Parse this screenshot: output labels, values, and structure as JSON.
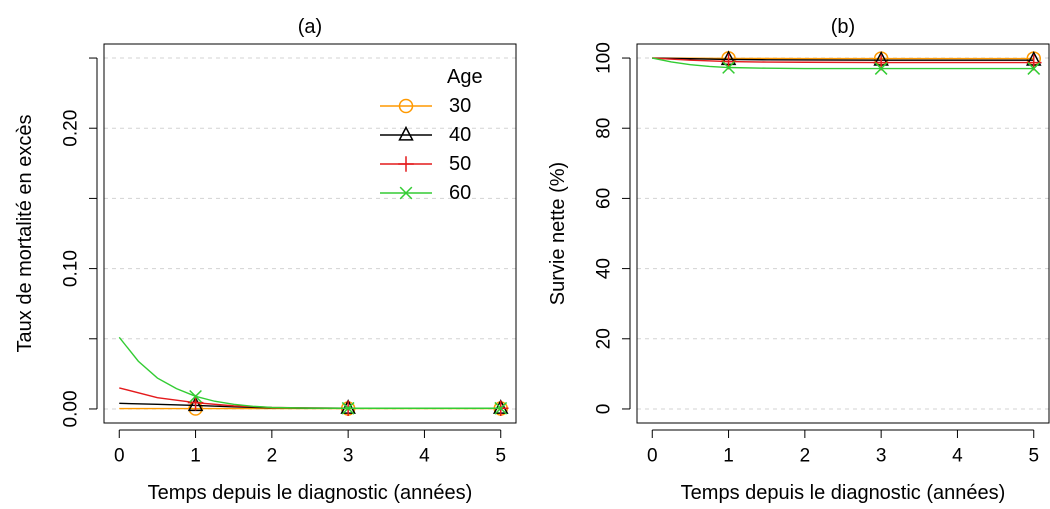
{
  "chart_data": [
    {
      "type": "line",
      "title": "(a)",
      "xlabel": "Temps depuis le diagnostic (années)",
      "ylabel": "Taux de mortalité en excès",
      "xlim": [
        0,
        5
      ],
      "ylim": [
        0,
        0.25
      ],
      "xticks": [
        0,
        1,
        2,
        3,
        4,
        5
      ],
      "xtick_labels": [
        "0",
        "1",
        "2",
        "3",
        "4",
        "5"
      ],
      "yticks": [
        0,
        0.05,
        0.1,
        0.15,
        0.2,
        0.25
      ],
      "ytick_labels": [
        "0.00",
        "",
        "0.10",
        "",
        "0.20",
        ""
      ],
      "grid": "horizontal dashed",
      "legend": {
        "title": "Age",
        "position": "top-right",
        "entries": [
          "30",
          "40",
          "50",
          "60"
        ]
      },
      "series": [
        {
          "name": "30",
          "color": "#FF9900",
          "marker": "circle",
          "x": [
            0,
            0.5,
            1,
            1.5,
            2,
            2.5,
            3,
            3.5,
            4,
            4.5,
            5
          ],
          "y": [
            0.0003,
            0.0003,
            0.0003,
            0.0003,
            0.0003,
            0.0003,
            0.0003,
            0.0003,
            0.0003,
            0.0003,
            0.0003
          ],
          "marker_x": [
            1,
            3,
            5
          ]
        },
        {
          "name": "40",
          "color": "#000000",
          "marker": "triangle",
          "x": [
            0,
            0.5,
            1,
            1.5,
            2,
            2.5,
            3,
            3.5,
            4,
            4.5,
            5
          ],
          "y": [
            0.004,
            0.0033,
            0.0025,
            0.0015,
            0.0008,
            0.0006,
            0.0005,
            0.0005,
            0.0005,
            0.0005,
            0.0005
          ],
          "marker_x": [
            1,
            3,
            5
          ]
        },
        {
          "name": "50",
          "color": "#E41A1C",
          "marker": "plus",
          "x": [
            0,
            0.5,
            1,
            1.5,
            2,
            2.5,
            3,
            3.5,
            4,
            4.5,
            5
          ],
          "y": [
            0.015,
            0.008,
            0.0045,
            0.0022,
            0.0011,
            0.0007,
            0.0005,
            0.0005,
            0.0005,
            0.0005,
            0.0005
          ],
          "marker_x": [
            1,
            3,
            5
          ]
        },
        {
          "name": "60",
          "color": "#33CC33",
          "marker": "x",
          "x": [
            0,
            0.25,
            0.5,
            0.75,
            1,
            1.25,
            1.5,
            1.75,
            2,
            2.5,
            3,
            3.5,
            4,
            4.5,
            5
          ],
          "y": [
            0.051,
            0.034,
            0.022,
            0.0145,
            0.009,
            0.0055,
            0.0033,
            0.0019,
            0.0011,
            0.0006,
            0.0005,
            0.0005,
            0.0005,
            0.0005,
            0.0005
          ],
          "marker_x": [
            1,
            3,
            5
          ]
        }
      ]
    },
    {
      "type": "line",
      "title": "(b)",
      "xlabel": "Temps depuis le diagnostic (années)",
      "ylabel": "Survie nette (%)",
      "xlim": [
        0,
        5
      ],
      "ylim": [
        0,
        100
      ],
      "xticks": [
        0,
        1,
        2,
        3,
        4,
        5
      ],
      "xtick_labels": [
        "0",
        "1",
        "2",
        "3",
        "4",
        "5"
      ],
      "yticks": [
        0,
        20,
        40,
        60,
        80,
        100
      ],
      "ytick_labels": [
        "0",
        "20",
        "40",
        "60",
        "80",
        "100"
      ],
      "grid": "horizontal dashed",
      "series": [
        {
          "name": "30",
          "color": "#FF9900",
          "marker": "circle",
          "x": [
            0,
            0.5,
            1,
            1.5,
            2,
            3,
            4,
            5
          ],
          "y": [
            100,
            99.95,
            99.9,
            99.88,
            99.86,
            99.85,
            99.85,
            99.85
          ],
          "marker_x": [
            1,
            3,
            5
          ]
        },
        {
          "name": "40",
          "color": "#000000",
          "marker": "triangle",
          "x": [
            0,
            0.5,
            1,
            1.5,
            2,
            3,
            4,
            5
          ],
          "y": [
            100,
            99.8,
            99.6,
            99.5,
            99.45,
            99.4,
            99.4,
            99.4
          ],
          "marker_x": [
            1,
            3,
            5
          ]
        },
        {
          "name": "50",
          "color": "#E41A1C",
          "marker": "plus",
          "x": [
            0,
            0.5,
            1,
            1.5,
            2,
            3,
            4,
            5
          ],
          "y": [
            100,
            99.4,
            99.0,
            98.85,
            98.8,
            98.7,
            98.7,
            98.7
          ],
          "marker_x": [
            1,
            3,
            5
          ]
        },
        {
          "name": "60",
          "color": "#33CC33",
          "marker": "x",
          "x": [
            0,
            0.25,
            0.5,
            0.75,
            1,
            1.5,
            2,
            3,
            4,
            5
          ],
          "y": [
            100,
            98.9,
            98.1,
            97.6,
            97.3,
            97.1,
            97.0,
            97.0,
            97.0,
            97.0
          ],
          "marker_x": [
            1,
            3,
            5
          ]
        }
      ]
    }
  ]
}
